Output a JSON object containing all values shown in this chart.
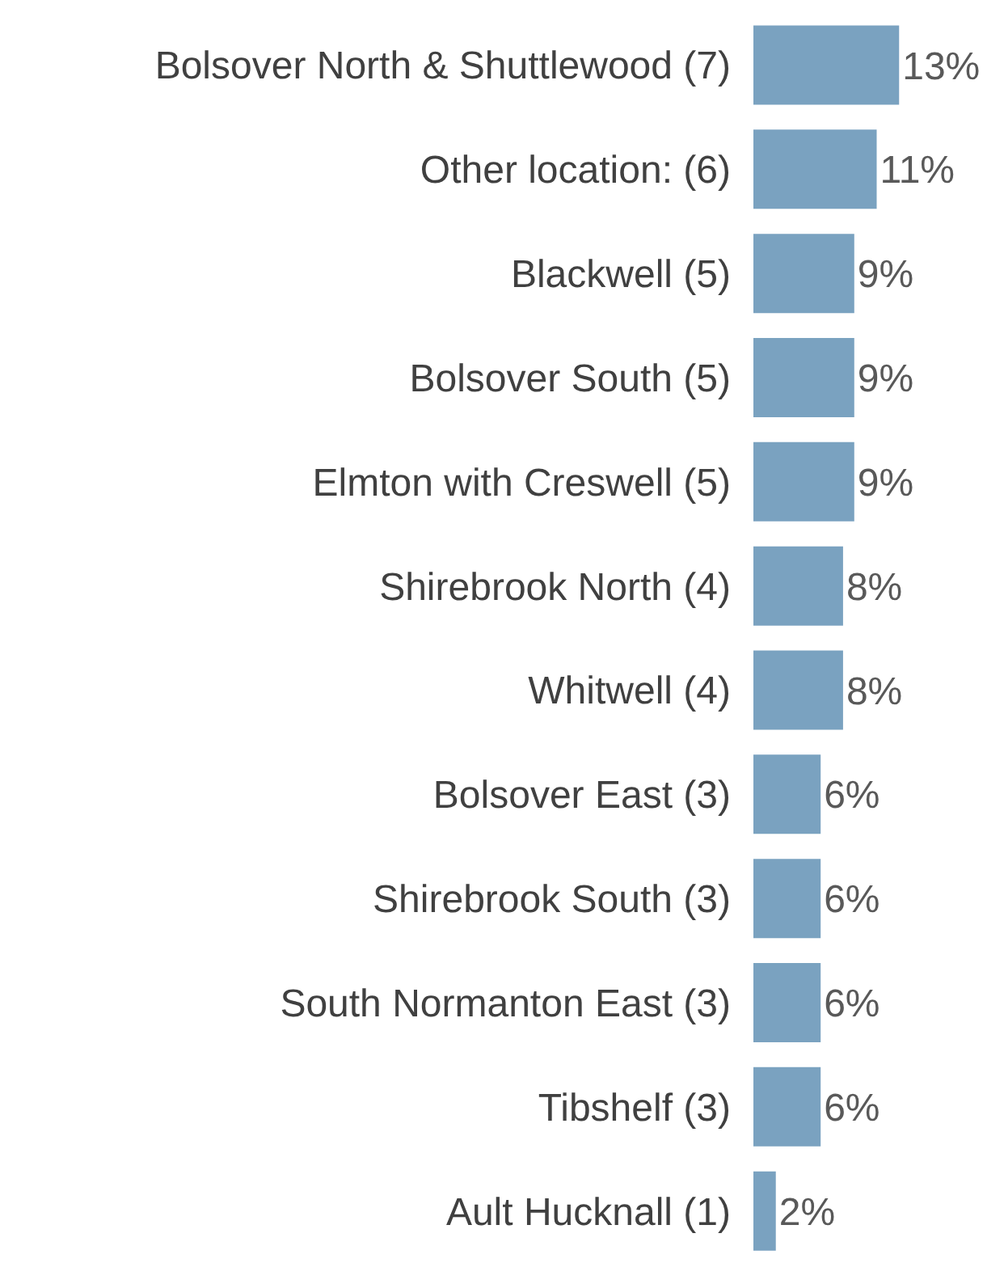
{
  "chart_data": {
    "type": "bar",
    "orientation": "horizontal",
    "categories": [
      "Bolsover North & Shuttlewood (7)",
      "Other location: (6)",
      "Blackwell (5)",
      "Bolsover South (5)",
      "Elmton with Creswell (5)",
      "Shirebrook North (4)",
      "Whitwell (4)",
      "Bolsover East (3)",
      "Shirebrook South (3)",
      "South Normanton East (3)",
      "Tibshelf (3)",
      "Ault Hucknall (1)"
    ],
    "values": [
      13,
      11,
      9,
      9,
      9,
      8,
      8,
      6,
      6,
      6,
      6,
      2
    ],
    "value_labels": [
      "13%",
      "11%",
      "9%",
      "9%",
      "9%",
      "8%",
      "8%",
      "6%",
      "6%",
      "6%",
      "6%",
      "2%"
    ],
    "color": "#7aa2c0",
    "grid": false,
    "legend": false
  }
}
